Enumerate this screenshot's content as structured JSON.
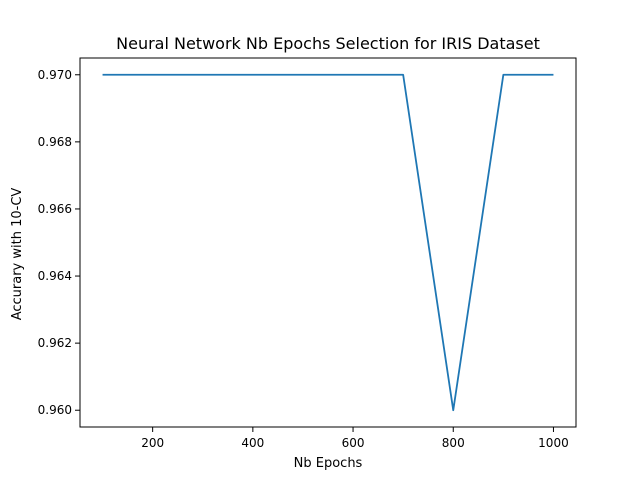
{
  "chart_data": {
    "type": "line",
    "title": "Neural Network Nb Epochs Selection for IRIS Dataset",
    "xlabel": "Nb Epochs",
    "ylabel": "Accurary with 10-CV",
    "xlim": [
      55,
      1045
    ],
    "ylim": [
      0.9595,
      0.9705
    ],
    "x_ticks": [
      200,
      400,
      600,
      800,
      1000
    ],
    "x_tick_labels": [
      "200",
      "400",
      "600",
      "800",
      "1000"
    ],
    "y_ticks": [
      0.96,
      0.962,
      0.964,
      0.966,
      0.968,
      0.97
    ],
    "y_tick_labels": [
      "0.960",
      "0.962",
      "0.964",
      "0.966",
      "0.968",
      "0.970"
    ],
    "grid": false,
    "series": [
      {
        "color": "#1f77b4",
        "x": [
          100,
          200,
          300,
          400,
          500,
          600,
          700,
          800,
          900,
          1000
        ],
        "y": [
          0.97,
          0.97,
          0.97,
          0.97,
          0.97,
          0.97,
          0.97,
          0.96,
          0.97,
          0.97
        ]
      }
    ]
  }
}
